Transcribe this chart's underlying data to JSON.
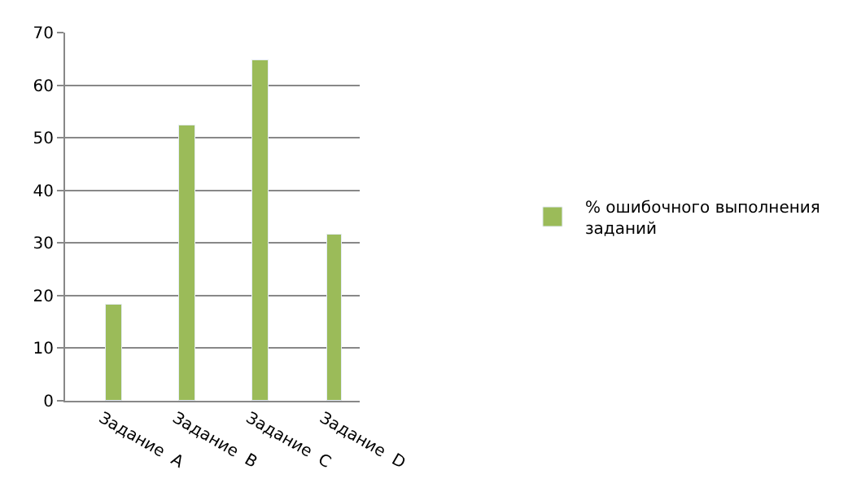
{
  "chart_data": {
    "type": "bar",
    "categories": [
      "Задание  А",
      "Задание  В",
      "Задание  С",
      "Задание  D"
    ],
    "series": [
      {
        "name": "% ошибочного выполнения заданий",
        "color": "#9bbb59",
        "values": [
          18.2,
          52.3,
          64.6,
          31.7
        ]
      }
    ],
    "ylim": [
      0,
      70
    ],
    "yticks": [
      0,
      10,
      20,
      30,
      40,
      50,
      60,
      70
    ],
    "grid": "y",
    "legend": "right"
  }
}
